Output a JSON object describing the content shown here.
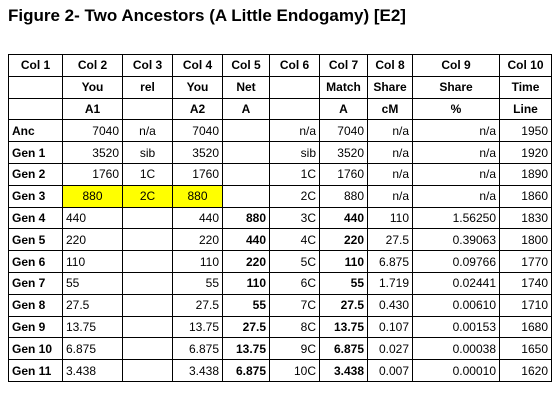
{
  "header": {
    "title": "Figure 2- Two Ancestors (A Little Endogamy) [E2]"
  },
  "table": {
    "header": [
      [
        "Col 1",
        "Col 2",
        "Col 3",
        "Col 4",
        "Col 5",
        "Col 6",
        "Col 7",
        "Col 8",
        "Col 9",
        "Col 10"
      ],
      [
        null,
        "You",
        "rel",
        "You",
        "Net",
        null,
        "Match",
        "Share",
        "Share",
        "Time"
      ],
      [
        null,
        "A1",
        null,
        "A2",
        "A",
        null,
        "A",
        "cM",
        "%",
        "Line"
      ]
    ],
    "rows": [
      [
        "Anc",
        "7040",
        "n/a",
        "7040",
        null,
        "n/a",
        "7040",
        "n/a",
        "n/a",
        "1950"
      ],
      [
        "Gen 1",
        "3520",
        "sib",
        "3520",
        null,
        "sib",
        "3520",
        "n/a",
        "n/a",
        "1920"
      ],
      [
        "Gen 2",
        "1760",
        "1C",
        "1760",
        null,
        "1C",
        "1760",
        "n/a",
        "n/a",
        "1890"
      ],
      [
        "Gen 3",
        "880",
        "2C",
        "880",
        null,
        "2C",
        "880",
        "n/a",
        "n/a",
        "1860"
      ],
      [
        "Gen 4",
        "440",
        null,
        "440",
        "880",
        "3C",
        "440",
        "110",
        "1.56250",
        "1830"
      ],
      [
        "Gen 5",
        "220",
        null,
        "220",
        "440",
        "4C",
        "220",
        "27.5",
        "0.39063",
        "1800"
      ],
      [
        "Gen 6",
        "110",
        null,
        "110",
        "220",
        "5C",
        "110",
        "6.875",
        "0.09766",
        "1770"
      ],
      [
        "Gen 7",
        "55",
        null,
        "55",
        "110",
        "6C",
        "55",
        "1.719",
        "0.02441",
        "1740"
      ],
      [
        "Gen 8",
        "27.5",
        null,
        "27.5",
        "55",
        "7C",
        "27.5",
        "0.430",
        "0.00610",
        "1710"
      ],
      [
        "Gen 9",
        "13.75",
        null,
        "13.75",
        "27.5",
        "8C",
        "13.75",
        "0.107",
        "0.00153",
        "1680"
      ],
      [
        "Gen 10",
        "6.875",
        null,
        "6.875",
        "13.75",
        "9C",
        "6.875",
        "0.027",
        "0.00038",
        "1650"
      ],
      [
        "Gen 11",
        "3.438",
        null,
        "3.438",
        "6.875",
        "10C",
        "3.438",
        "0.007",
        "0.00010",
        "1620"
      ]
    ]
  }
}
